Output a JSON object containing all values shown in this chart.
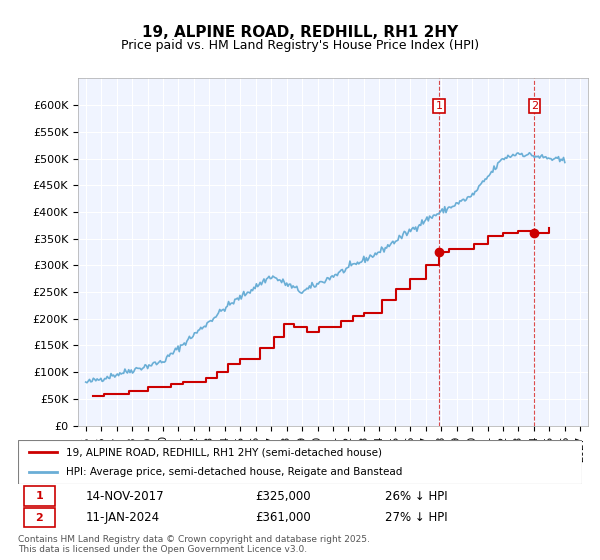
{
  "title": "19, ALPINE ROAD, REDHILL, RH1 2HY",
  "subtitle": "Price paid vs. HM Land Registry's House Price Index (HPI)",
  "legend_line1": "19, ALPINE ROAD, REDHILL, RH1 2HY (semi-detached house)",
  "legend_line2": "HPI: Average price, semi-detached house, Reigate and Banstead",
  "annotation1_label": "1",
  "annotation1_date": "14-NOV-2017",
  "annotation1_price": "£325,000",
  "annotation1_hpi": "26% ↓ HPI",
  "annotation2_label": "2",
  "annotation2_date": "11-JAN-2024",
  "annotation2_price": "£361,000",
  "annotation2_hpi": "27% ↓ HPI",
  "footer": "Contains HM Land Registry data © Crown copyright and database right 2025.\nThis data is licensed under the Open Government Licence v3.0.",
  "hpi_color": "#6aaed6",
  "price_color": "#cc0000",
  "annotation_color": "#cc0000",
  "background_color": "#f0f4ff",
  "plot_bg_color": "#f0f4ff",
  "ylim": [
    0,
    650000
  ],
  "yticks": [
    0,
    50000,
    100000,
    150000,
    200000,
    250000,
    300000,
    350000,
    400000,
    450000,
    500000,
    550000,
    600000
  ],
  "ytick_labels": [
    "£0",
    "£50K",
    "£100K",
    "£150K",
    "£200K",
    "£250K",
    "£300K",
    "£350K",
    "£400K",
    "£450K",
    "£500K",
    "£550K",
    "£600K"
  ],
  "xmin_year": 1995,
  "xmax_year": 2027,
  "xtick_years": [
    1995,
    1996,
    1997,
    1998,
    1999,
    2000,
    2001,
    2002,
    2003,
    2004,
    2005,
    2006,
    2007,
    2008,
    2009,
    2010,
    2011,
    2012,
    2013,
    2014,
    2015,
    2016,
    2017,
    2018,
    2019,
    2020,
    2021,
    2022,
    2023,
    2024,
    2025,
    2026,
    2027
  ]
}
